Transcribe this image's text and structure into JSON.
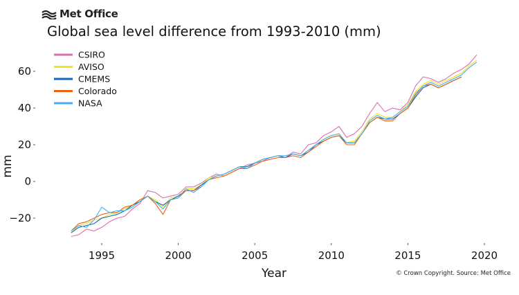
{
  "header": {
    "brand": "Met Office",
    "credit": "© Crown Copyright. Source: Met Office"
  },
  "chart_data": {
    "type": "line",
    "title": "Global sea level difference from 1993-2010 (mm)",
    "xlabel": "Year",
    "ylabel": "mm",
    "xlim": [
      1993,
      2020
    ],
    "ylim": [
      -32,
      70
    ],
    "xticks": [
      1995,
      2000,
      2005,
      2010,
      2015,
      2020
    ],
    "yticks": [
      -20,
      0,
      20,
      40,
      60
    ],
    "ytick_labels": [
      "−20",
      "0",
      "20",
      "40",
      "60"
    ],
    "grid": false,
    "legend": "top-left",
    "x": [
      1993.0,
      1993.5,
      1994.0,
      1994.5,
      1995.0,
      1995.5,
      1996.0,
      1996.5,
      1997.0,
      1997.5,
      1998.0,
      1998.5,
      1999.0,
      1999.5,
      2000.0,
      2000.5,
      2001.0,
      2001.5,
      2002.0,
      2002.5,
      2003.0,
      2003.5,
      2004.0,
      2004.5,
      2005.0,
      2005.5,
      2006.0,
      2006.5,
      2007.0,
      2007.5,
      2008.0,
      2008.5,
      2009.0,
      2009.5,
      2010.0,
      2010.5,
      2011.0,
      2011.5,
      2012.0,
      2012.5,
      2013.0,
      2013.5,
      2014.0,
      2014.5,
      2015.0,
      2015.5,
      2016.0,
      2016.5,
      2017.0,
      2017.5,
      2018.0,
      2018.5,
      2019.0,
      2019.5
    ],
    "series": [
      {
        "name": "CSIRO",
        "color": "#d96fb0",
        "values": [
          -30,
          -29,
          -26,
          -27,
          -25,
          -22,
          -20,
          -19,
          -15,
          -12,
          -5,
          -6,
          -9,
          -8,
          -7,
          -3,
          -3,
          -1,
          2,
          4,
          3,
          5,
          7,
          9,
          10,
          11,
          13,
          14,
          13,
          16,
          15,
          20,
          21,
          25,
          27,
          30,
          24,
          26,
          30,
          37,
          43,
          38,
          40,
          39,
          43,
          52,
          57,
          56,
          54,
          56,
          59,
          61,
          64,
          69
        ]
      },
      {
        "name": "AVISO",
        "color": "#f2e21f",
        "values": [
          -28,
          -24,
          -23,
          -21,
          -20,
          -18,
          -17,
          -15,
          -13,
          -10,
          -8,
          -10,
          -14,
          -9,
          -8,
          -4,
          -4,
          -2,
          2,
          3,
          4,
          6,
          8,
          8,
          10,
          12,
          13,
          14,
          14,
          15,
          14,
          17,
          20,
          23,
          25,
          26,
          21,
          22,
          27,
          34,
          37,
          35,
          35,
          38,
          42,
          49,
          53,
          55,
          53,
          55,
          57,
          59,
          63,
          66
        ]
      },
      {
        "name": "CMEMS",
        "color": "#1166b8",
        "values": [
          -28,
          -25,
          -24,
          -23,
          -20,
          -19,
          -18,
          -16,
          -13,
          -11,
          -8,
          -11,
          -13,
          -10,
          -8,
          -5,
          -5,
          -2,
          1,
          3,
          4,
          6,
          8,
          8,
          10,
          12,
          13,
          14,
          13,
          15,
          14,
          16,
          20,
          22,
          24,
          25,
          21,
          21,
          26,
          32,
          35,
          34,
          34,
          37,
          40,
          46,
          51,
          53,
          51,
          53,
          55,
          57,
          null,
          null
        ]
      },
      {
        "name": "Colorado",
        "color": "#e8620f",
        "values": [
          -27,
          -23,
          -22,
          -20,
          -18,
          -17,
          -17,
          -14,
          -13,
          -10,
          -8,
          -12,
          -18,
          -10,
          -9,
          -5,
          -5,
          -3,
          1,
          2,
          3,
          5,
          7,
          7,
          9,
          11,
          12,
          13,
          13,
          14,
          13,
          16,
          19,
          22,
          24,
          25,
          20,
          20,
          26,
          32,
          35,
          33,
          33,
          37,
          40,
          47,
          52,
          53,
          51,
          53,
          55,
          57,
          null,
          null
        ]
      },
      {
        "name": "NASA",
        "color": "#3fb0ef",
        "values": [
          -27,
          -24,
          -25,
          -21,
          -14,
          -17,
          -16,
          -16,
          -14,
          -11,
          -8,
          -11,
          -15,
          -10,
          -9,
          -4,
          -6,
          -3,
          1,
          3,
          4,
          6,
          8,
          7,
          10,
          12,
          13,
          14,
          14,
          15,
          14,
          17,
          20,
          23,
          25,
          26,
          21,
          21,
          26,
          33,
          36,
          34,
          35,
          38,
          41,
          48,
          52,
          54,
          52,
          54,
          56,
          58,
          62,
          65
        ]
      }
    ]
  }
}
